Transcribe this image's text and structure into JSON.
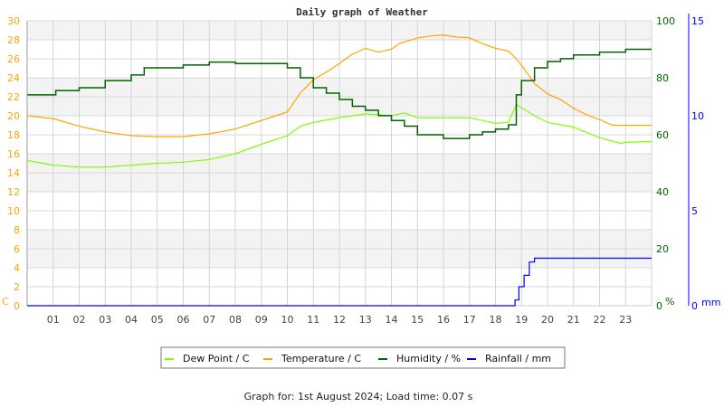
{
  "chart_data": {
    "type": "line",
    "title": "Daily graph of Weather",
    "footer": "Graph for: 1st August 2024; Load time: 0.07 s",
    "x_ticks": [
      "01",
      "02",
      "03",
      "04",
      "05",
      "06",
      "07",
      "08",
      "09",
      "10",
      "11",
      "12",
      "13",
      "14",
      "15",
      "16",
      "17",
      "18",
      "19",
      "20",
      "21",
      "22",
      "23"
    ],
    "xlim": [
      0,
      24
    ],
    "axes": {
      "left": {
        "label": "C",
        "ylim": [
          0,
          30
        ],
        "ticks": [
          0,
          2,
          4,
          6,
          8,
          10,
          12,
          14,
          16,
          18,
          20,
          22,
          24,
          26,
          28,
          30
        ],
        "color": "#ffa500"
      },
      "right1": {
        "label": "%",
        "ylim": [
          0,
          100
        ],
        "ticks": [
          0,
          20,
          40,
          60,
          80,
          100
        ],
        "color": "#006400"
      },
      "right2": {
        "label": "mm",
        "ylim": [
          0,
          15
        ],
        "ticks": [
          0,
          5,
          10,
          15
        ],
        "color": "#0000ff"
      }
    },
    "grid": true,
    "legend_position": "bottom",
    "series": [
      {
        "name": "Dew Point / C",
        "axis": "left",
        "color": "#7fff00",
        "points": [
          [
            0,
            15.3
          ],
          [
            1,
            14.8
          ],
          [
            2,
            14.6
          ],
          [
            3,
            14.6
          ],
          [
            4,
            14.8
          ],
          [
            5,
            15.0
          ],
          [
            6,
            15.1
          ],
          [
            7,
            15.4
          ],
          [
            8,
            16.0
          ],
          [
            9,
            17.0
          ],
          [
            10,
            17.9
          ],
          [
            10.5,
            18.9
          ],
          [
            11,
            19.3
          ],
          [
            12,
            19.8
          ],
          [
            13,
            20.2
          ],
          [
            14,
            20.0
          ],
          [
            14.5,
            20.3
          ],
          [
            15,
            19.8
          ],
          [
            16,
            19.8
          ],
          [
            17,
            19.8
          ],
          [
            18,
            19.2
          ],
          [
            18.5,
            19.3
          ],
          [
            18.8,
            21.2
          ],
          [
            19.5,
            20.0
          ],
          [
            20,
            19.3
          ],
          [
            21,
            18.8
          ],
          [
            22,
            17.7
          ],
          [
            22.8,
            17.1
          ],
          [
            23,
            17.2
          ],
          [
            24,
            17.3
          ]
        ]
      },
      {
        "name": "Temperature / C",
        "axis": "left",
        "color": "#ffa500",
        "points": [
          [
            0,
            20.0
          ],
          [
            1,
            19.7
          ],
          [
            2,
            18.9
          ],
          [
            3,
            18.3
          ],
          [
            4,
            17.9
          ],
          [
            5,
            17.8
          ],
          [
            6,
            17.8
          ],
          [
            7,
            18.1
          ],
          [
            8,
            18.6
          ],
          [
            9,
            19.5
          ],
          [
            10,
            20.4
          ],
          [
            10.5,
            22.4
          ],
          [
            11,
            23.8
          ],
          [
            11.5,
            24.6
          ],
          [
            12,
            25.5
          ],
          [
            12.5,
            26.5
          ],
          [
            13,
            27.1
          ],
          [
            13.5,
            26.7
          ],
          [
            14,
            27.0
          ],
          [
            14.3,
            27.6
          ],
          [
            15,
            28.2
          ],
          [
            15.5,
            28.4
          ],
          [
            16,
            28.5
          ],
          [
            16.5,
            28.3
          ],
          [
            17,
            28.2
          ],
          [
            17.5,
            27.6
          ],
          [
            18,
            27.1
          ],
          [
            18.5,
            26.8
          ],
          [
            18.8,
            26.0
          ],
          [
            19.2,
            24.6
          ],
          [
            19.5,
            23.4
          ],
          [
            20,
            22.3
          ],
          [
            20.5,
            21.7
          ],
          [
            21,
            20.8
          ],
          [
            21.5,
            20.1
          ],
          [
            22,
            19.6
          ],
          [
            22.5,
            19.0
          ],
          [
            23,
            19.0
          ],
          [
            24,
            19.0
          ]
        ]
      },
      {
        "name": "Humidity / %",
        "axis": "right1",
        "color": "#006400",
        "points": [
          [
            0,
            74
          ],
          [
            1.1,
            75.5
          ],
          [
            2,
            76.5
          ],
          [
            3,
            79
          ],
          [
            4,
            81
          ],
          [
            4.5,
            83.5
          ],
          [
            5,
            83.5
          ],
          [
            6,
            84.5
          ],
          [
            7,
            85.5
          ],
          [
            8,
            85
          ],
          [
            9,
            85
          ],
          [
            10,
            83.5
          ],
          [
            10.5,
            80
          ],
          [
            11,
            76.5
          ],
          [
            11.5,
            74.6
          ],
          [
            12,
            72.4
          ],
          [
            12.5,
            70
          ],
          [
            13,
            68.6
          ],
          [
            13.5,
            66.7
          ],
          [
            14,
            65
          ],
          [
            14.5,
            63
          ],
          [
            15,
            60
          ],
          [
            16,
            58.7
          ],
          [
            17,
            60
          ],
          [
            17.5,
            61
          ],
          [
            18,
            62
          ],
          [
            18.5,
            63.5
          ],
          [
            18.8,
            74
          ],
          [
            19,
            79
          ],
          [
            19.5,
            83.5
          ],
          [
            20,
            85.7
          ],
          [
            20.5,
            86.7
          ],
          [
            21,
            88
          ],
          [
            22,
            89
          ],
          [
            23,
            90
          ],
          [
            24,
            90
          ]
        ]
      },
      {
        "name": "Rainfall / mm",
        "axis": "right2",
        "color": "#0000ff",
        "points": [
          [
            0,
            0
          ],
          [
            18.7,
            0
          ],
          [
            18.75,
            0.3
          ],
          [
            18.9,
            1.0
          ],
          [
            19.1,
            1.6
          ],
          [
            19.3,
            2.3
          ],
          [
            19.5,
            2.5
          ],
          [
            24,
            2.5
          ]
        ]
      }
    ]
  }
}
